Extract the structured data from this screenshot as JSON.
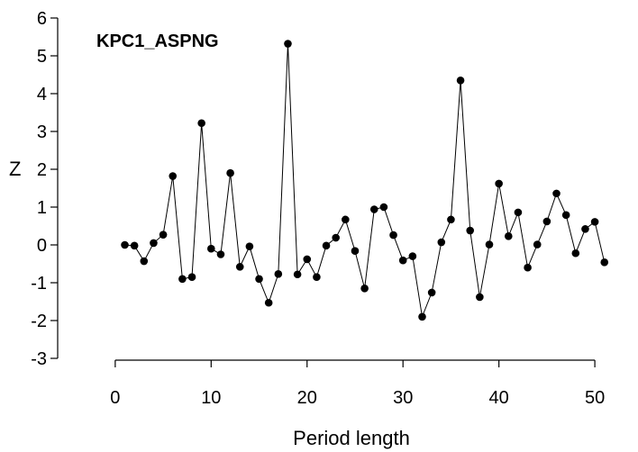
{
  "chart_data": {
    "type": "line",
    "title": "KPC1_ASPNG",
    "xlabel": "Period length",
    "ylabel": "Z",
    "xlim": [
      -6,
      54.5
    ],
    "ylim": [
      -3,
      6
    ],
    "xticks": [
      0,
      10,
      20,
      30,
      40,
      50
    ],
    "yticks": [
      -3,
      -2,
      -1,
      0,
      1,
      2,
      3,
      4,
      5,
      6
    ],
    "grid": false,
    "markers": "filled-circle",
    "series": [
      {
        "x": [
          1,
          2,
          3,
          4,
          5,
          6,
          7,
          8,
          9,
          10,
          11,
          12,
          13,
          14,
          15,
          16,
          17,
          18,
          19,
          20,
          21,
          22,
          23,
          24,
          25,
          26,
          27,
          28,
          29,
          30,
          31,
          32,
          33,
          34,
          35,
          36,
          37,
          38,
          39,
          40,
          41,
          42,
          43,
          44,
          45,
          46,
          47,
          48,
          49,
          50,
          51
        ],
        "y": [
          0.0,
          -0.02,
          -0.43,
          0.05,
          0.27,
          1.82,
          -0.9,
          -0.85,
          3.22,
          -0.1,
          -0.25,
          1.9,
          -0.58,
          -0.04,
          -0.9,
          -1.53,
          -0.77,
          5.32,
          -0.78,
          -0.38,
          -0.85,
          -0.02,
          0.19,
          0.67,
          -0.16,
          -1.15,
          0.94,
          1.0,
          0.26,
          -0.41,
          -0.3,
          -1.9,
          -1.26,
          0.07,
          0.67,
          4.35,
          0.38,
          -1.38,
          0.01,
          1.62,
          0.23,
          0.86,
          -0.6,
          0.01,
          0.62,
          1.36,
          0.79,
          -0.22,
          0.42,
          0.61,
          -0.46
        ]
      }
    ]
  }
}
